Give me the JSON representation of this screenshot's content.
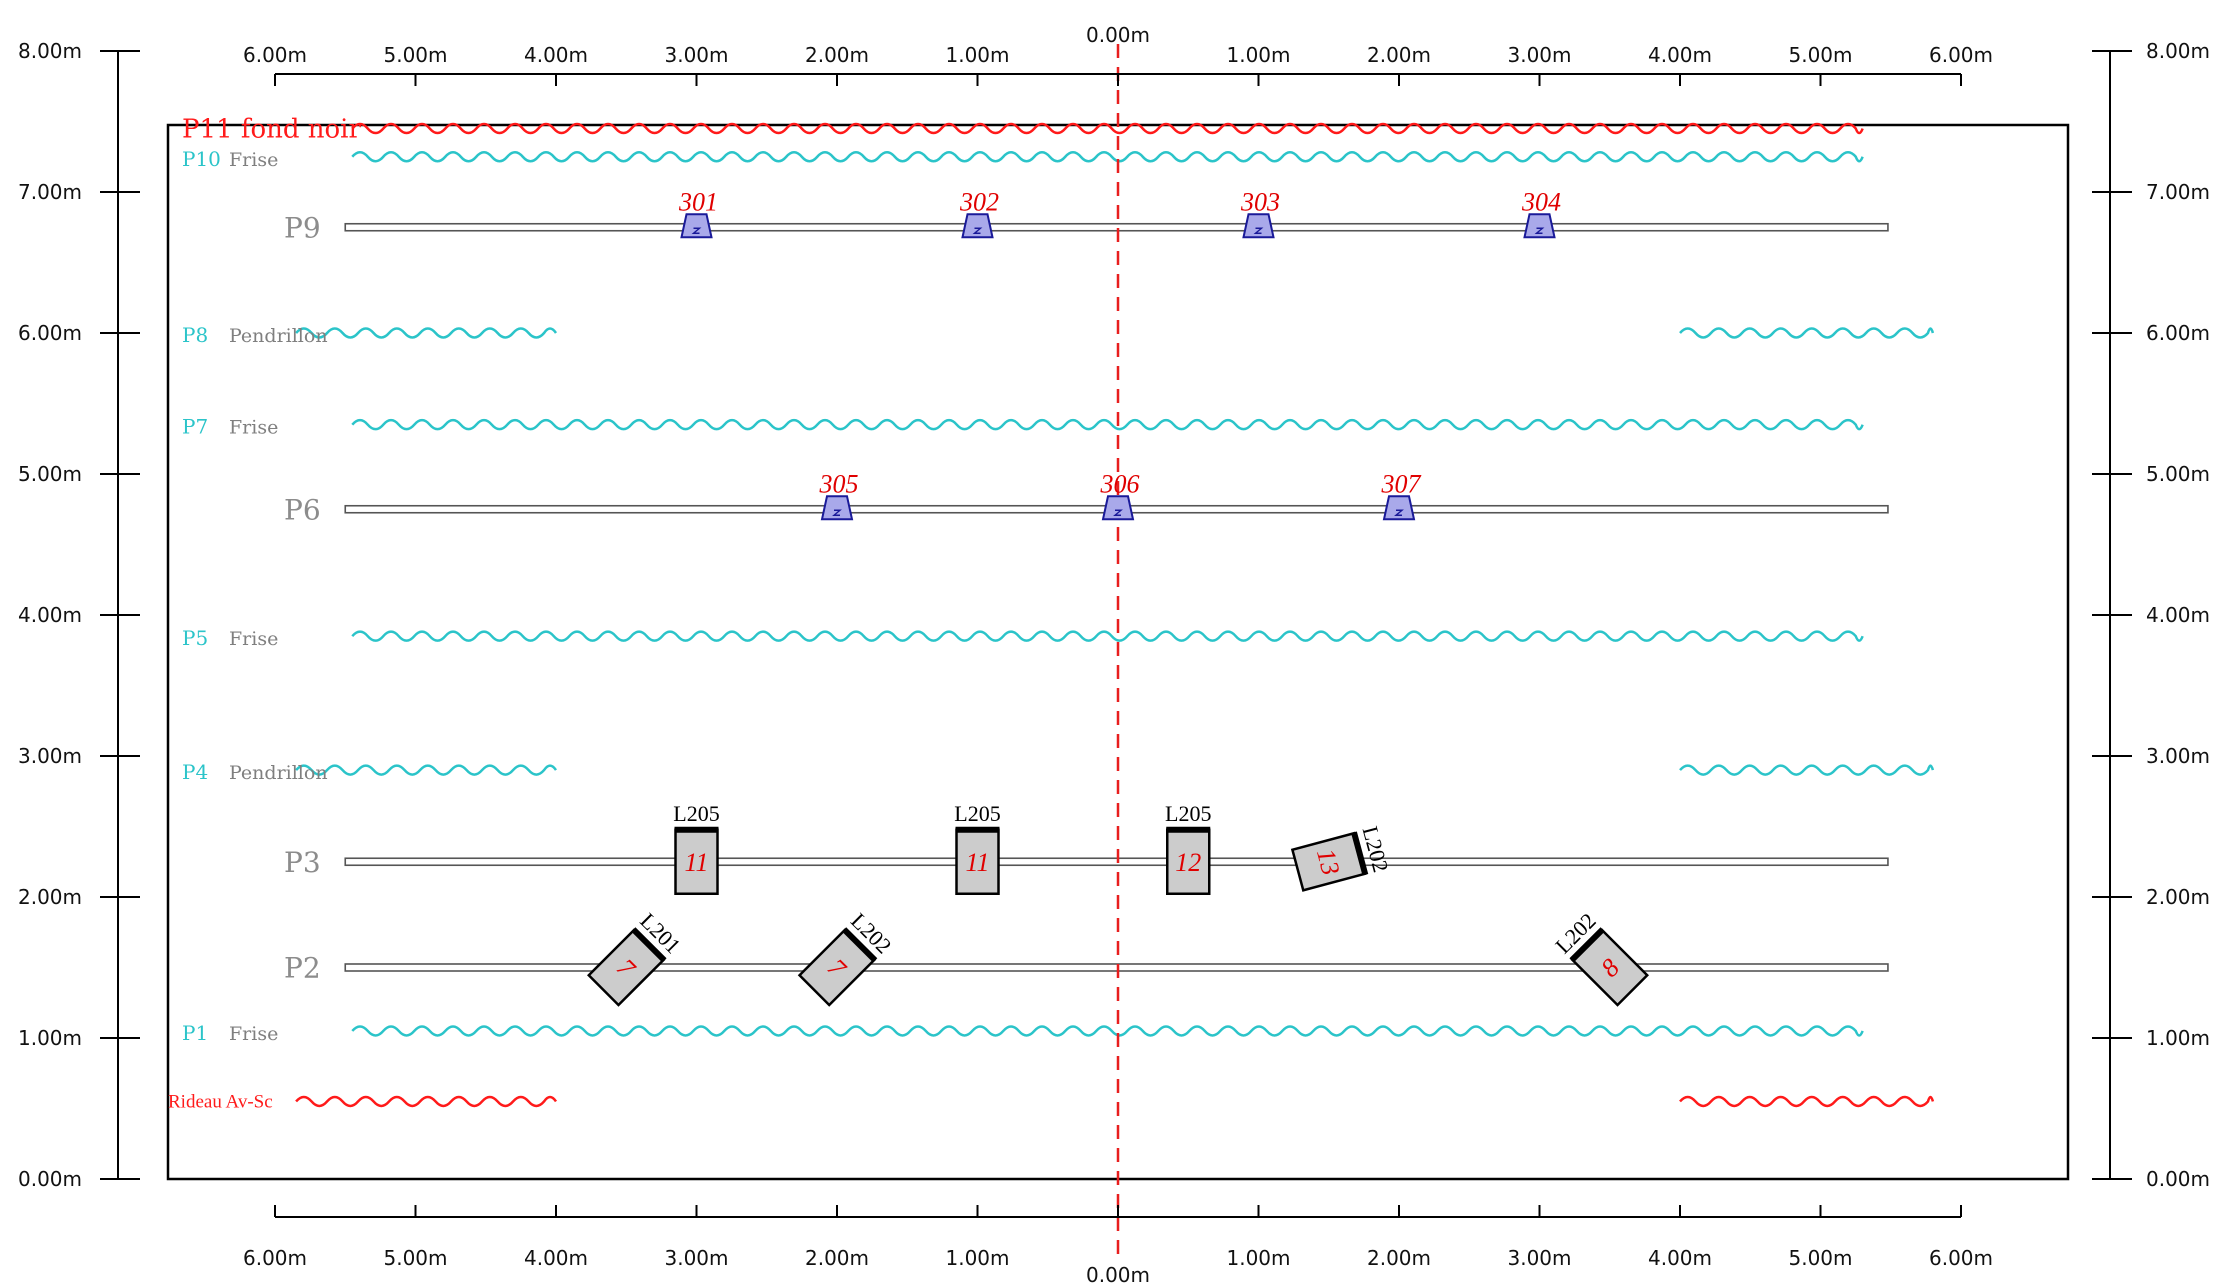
{
  "colors": {
    "frame": "#000000",
    "pipe": "#7f7f7f",
    "frise": "#2bc4c9",
    "curtain_red": "#ff1a1a",
    "centerline": "#e81e1e",
    "fixture_fill": "#a9a9ea",
    "fixture_stroke": "#1a1a99",
    "spot_fill": "#cccccc"
  },
  "axes": {
    "x_top_labels": [
      "6.00m",
      "5.00m",
      "4.00m",
      "3.00m",
      "2.00m",
      "1.00m",
      "0.00m",
      "1.00m",
      "2.00m",
      "3.00m",
      "4.00m",
      "5.00m",
      "6.00m"
    ],
    "x_bottom_labels": [
      "6.00m",
      "5.00m",
      "4.00m",
      "3.00m",
      "2.00m",
      "1.00m",
      "0.00m",
      "1.00m",
      "2.00m",
      "3.00m",
      "4.00m",
      "5.00m",
      "6.00m"
    ],
    "y_labels": [
      "0.00m",
      "1.00m",
      "2.00m",
      "3.00m",
      "4.00m",
      "5.00m",
      "6.00m",
      "7.00m",
      "8.00m"
    ]
  },
  "pipes": [
    {
      "label": "P9",
      "depth_m": 6.75
    },
    {
      "label": "P6",
      "depth_m": 4.75
    },
    {
      "label": "P3",
      "depth_m": 2.25
    },
    {
      "label": "P2",
      "depth_m": 1.5
    }
  ],
  "planes": [
    {
      "num": "P11",
      "name": "fond noir",
      "type": "red",
      "depth_m": 7.45,
      "sides": "full"
    },
    {
      "num": "P10",
      "name": "Frise",
      "type": "frise",
      "depth_m": 7.25,
      "sides": "full"
    },
    {
      "num": "P8",
      "name": "Pendrillon",
      "type": "frise",
      "depth_m": 6.0,
      "sides": "split"
    },
    {
      "num": "P7",
      "name": "Frise",
      "type": "frise",
      "depth_m": 5.35,
      "sides": "full"
    },
    {
      "num": "P5",
      "name": "Frise",
      "type": "frise",
      "depth_m": 3.85,
      "sides": "full"
    },
    {
      "num": "P4",
      "name": "Pendrillon",
      "type": "frise",
      "depth_m": 2.9,
      "sides": "split"
    },
    {
      "num": "P1",
      "name": "Frise",
      "type": "frise",
      "depth_m": 1.05,
      "sides": "full"
    },
    {
      "num": "",
      "name": "Rideau Av-Sc",
      "type": "red",
      "depth_m": 0.55,
      "sides": "split"
    }
  ],
  "fixtures": [
    {
      "num": "301",
      "x_m": -3.0,
      "pipe": "P9"
    },
    {
      "num": "302",
      "x_m": -1.0,
      "pipe": "P9"
    },
    {
      "num": "303",
      "x_m": 1.0,
      "pipe": "P9"
    },
    {
      "num": "304",
      "x_m": 3.0,
      "pipe": "P9"
    },
    {
      "num": "305",
      "x_m": -2.0,
      "pipe": "P6"
    },
    {
      "num": "306",
      "x_m": 0.0,
      "pipe": "P6"
    },
    {
      "num": "307",
      "x_m": 2.0,
      "pipe": "P6"
    }
  ],
  "spots": [
    {
      "type": "L205",
      "channel": "11",
      "x_m": -3.0,
      "pipe": "P3",
      "rotation_deg": 0
    },
    {
      "type": "L205",
      "channel": "11",
      "x_m": -1.0,
      "pipe": "P3",
      "rotation_deg": 0
    },
    {
      "type": "L205",
      "channel": "12",
      "x_m": 0.5,
      "pipe": "P3",
      "rotation_deg": 0
    },
    {
      "type": "L202",
      "channel": "13",
      "x_m": 1.5,
      "pipe": "P3",
      "rotation_deg": 75
    },
    {
      "type": "L201",
      "channel": "7",
      "x_m": -3.5,
      "pipe": "P2",
      "rotation_deg": 45
    },
    {
      "type": "L202",
      "channel": "7",
      "x_m": -2.0,
      "pipe": "P2",
      "rotation_deg": 45
    },
    {
      "type": "L202",
      "channel": "8",
      "x_m": 3.5,
      "pipe": "P2",
      "rotation_deg": -45
    }
  ]
}
